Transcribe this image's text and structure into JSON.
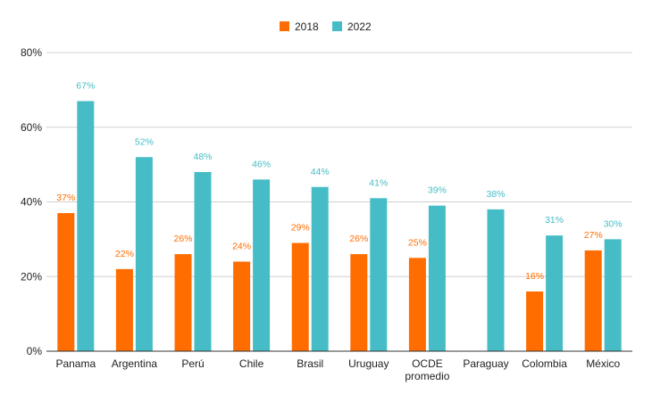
{
  "chart_data": {
    "type": "bar",
    "categories": [
      "Panama",
      "Argentina",
      "Perú",
      "Chile",
      "Brasil",
      "Uruguay",
      "OCDE\npromedio",
      "Paraguay",
      "Colombia",
      "México"
    ],
    "series": [
      {
        "name": "2018",
        "color": "#ff6d01",
        "values": [
          37,
          22,
          26,
          24,
          29,
          26,
          25,
          null,
          16,
          27
        ],
        "labels": [
          "37%",
          "22%",
          "26%",
          "24%",
          "29%",
          "26%",
          "25%",
          "",
          "16%",
          "27%"
        ]
      },
      {
        "name": "2022",
        "color": "#46bdc6",
        "values": [
          67,
          52,
          48,
          46,
          44,
          41,
          39,
          38,
          31,
          30
        ],
        "labels": [
          "67%",
          "52%",
          "48%",
          "46%",
          "44%",
          "41%",
          "39%",
          "38%",
          "31%",
          "30%"
        ]
      }
    ],
    "yticks": [
      "0%",
      "20%",
      "40%",
      "60%",
      "80%"
    ],
    "ylim": [
      0,
      80
    ],
    "title": "",
    "xlabel": "",
    "ylabel": "",
    "grid": true,
    "legend": "top-center"
  }
}
